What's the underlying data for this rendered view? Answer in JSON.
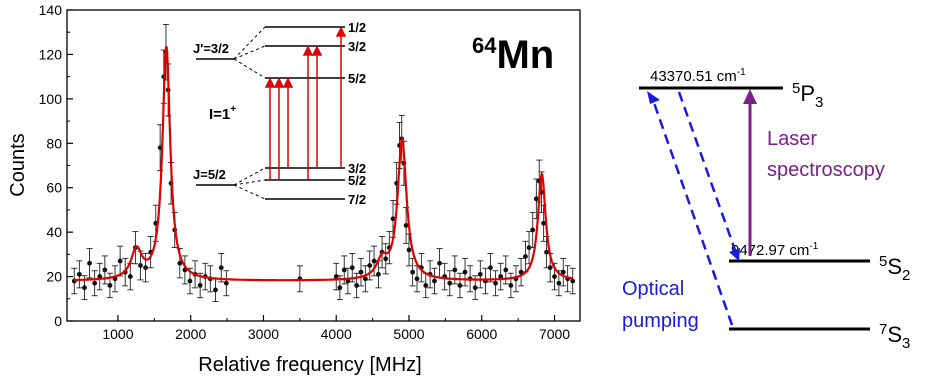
{
  "chart_data": [
    {
      "type": "scatter",
      "title": "⁶⁴Mn",
      "title_parts": {
        "mass": "64",
        "element": "Mn"
      },
      "xlabel": "Relative frequency [MHz]",
      "ylabel": "Counts",
      "xlim": [
        300,
        7350
      ],
      "ylim": [
        0,
        140
      ],
      "x_ticks": [
        1000,
        2000,
        3000,
        4000,
        5000,
        6000,
        7000
      ],
      "y_ticks": [
        0,
        20,
        40,
        60,
        80,
        100,
        120,
        140
      ],
      "x_tick_labels": [
        "1000",
        "2000",
        "3000",
        "4000",
        "5000",
        "6000",
        "7000"
      ],
      "y_tick_labels": [
        "0",
        "20",
        "40",
        "60",
        "80",
        "100",
        "120",
        "140"
      ],
      "grid": false,
      "legend": "none",
      "series": [
        {
          "style": "points-with-error-bars",
          "color": "#111111",
          "x": [
            400,
            470,
            540,
            610,
            680,
            750,
            820,
            890,
            960,
            1030,
            1100,
            1170,
            1240,
            1310,
            1380,
            1450,
            1520,
            1580,
            1630,
            1660,
            1690,
            1730,
            1780,
            1850,
            1920,
            1990,
            2060,
            2130,
            2200,
            2270,
            2340,
            2420,
            2490,
            3500,
            4000,
            4050,
            4110,
            4160,
            4220,
            4280,
            4340,
            4400,
            4460,
            4520,
            4580,
            4630,
            4680,
            4730,
            4780,
            4830,
            4870,
            4900,
            4930,
            4960,
            5000,
            5050,
            5110,
            5170,
            5230,
            5290,
            5350,
            5420,
            5490,
            5560,
            5630,
            5700,
            5770,
            5840,
            5910,
            5980,
            6050,
            6120,
            6190,
            6260,
            6330,
            6400,
            6470,
            6540,
            6600,
            6650,
            6700,
            6750,
            6790,
            6820,
            6850,
            6890,
            6940,
            7000,
            7060,
            7120,
            7180,
            7250
          ],
          "y": [
            18,
            21,
            15,
            26,
            17,
            20,
            23,
            16,
            19,
            27,
            22,
            20,
            33,
            25,
            24,
            31,
            44,
            78,
            110,
            121,
            104,
            62,
            41,
            26,
            23,
            18,
            21,
            16,
            20,
            19,
            14,
            24,
            17,
            19,
            20,
            15,
            23,
            18,
            24,
            16,
            22,
            19,
            25,
            27,
            21,
            31,
            28,
            33,
            46,
            62,
            79,
            82,
            71,
            43,
            32,
            22,
            19,
            24,
            16,
            21,
            18,
            26,
            20,
            17,
            23,
            16,
            22,
            19,
            15,
            21,
            18,
            24,
            17,
            20,
            23,
            16,
            19,
            22,
            29,
            33,
            41,
            55,
            63,
            58,
            44,
            31,
            24,
            20,
            17,
            22,
            19,
            18
          ]
        },
        {
          "style": "fit-line",
          "color": "#e00000",
          "peaks": [
            {
              "center": 1255,
              "height": 13,
              "width": 90
            },
            {
              "center": 1665,
              "height": 105,
              "width": 65
            },
            {
              "center": 4630,
              "height": 8,
              "width": 90
            },
            {
              "center": 4905,
              "height": 63,
              "width": 75
            },
            {
              "center": 6825,
              "height": 48,
              "width": 65
            }
          ],
          "baseline": 18
        }
      ],
      "inset": {
        "title": "I=1",
        "title_superscript": "+",
        "upper_label": "J'=3/2",
        "lower_label": "J=5/2",
        "upper_levels": [
          "1/2",
          "3/2",
          "5/2"
        ],
        "lower_levels": [
          "3/2",
          "5/2",
          "7/2"
        ],
        "arrow_color": "#e00000"
      }
    },
    {
      "type": "diagram",
      "levels": [
        {
          "id": "p3",
          "energy": "43370.51 cm",
          "energy_exp": "-1",
          "term": "P",
          "term_sup": "5",
          "term_sub": "3"
        },
        {
          "id": "s2",
          "energy": "9472.97 cm",
          "energy_exp": "-1",
          "term": "S",
          "term_sup": "5",
          "term_sub": "2"
        },
        {
          "id": "s3",
          "energy": "",
          "energy_exp": "",
          "term": "S",
          "term_sup": "7",
          "term_sub": "3"
        }
      ],
      "laser_label": [
        "Laser",
        "spectroscopy"
      ],
      "pumping_label": [
        "Optical",
        "pumping"
      ],
      "colors": {
        "laser": "#7b1f8a",
        "pumping": "#1a1ae0",
        "level": "#000000"
      }
    }
  ]
}
